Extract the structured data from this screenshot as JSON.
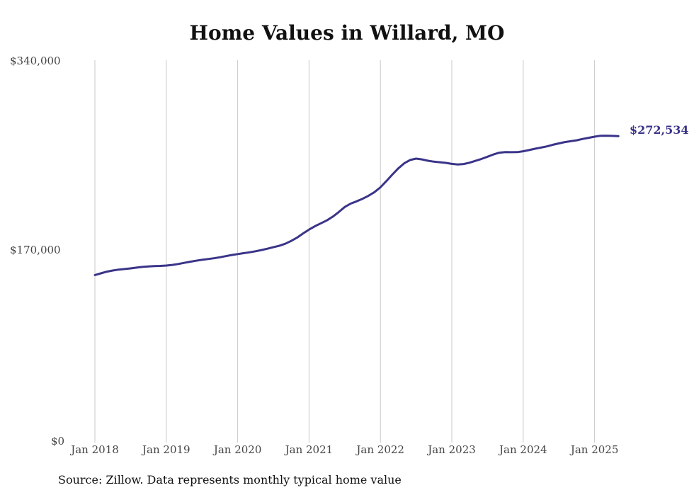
{
  "chart_data": {
    "type": "line",
    "title": "Home Values in Willard, MO",
    "xlabel": "",
    "ylabel": "",
    "x_ticks": [
      "Jan 2018",
      "Jan 2019",
      "Jan 2020",
      "Jan 2021",
      "Jan 2022",
      "Jan 2023",
      "Jan 2024",
      "Jan 2025"
    ],
    "y_ticks": [
      "$340,000",
      "$170,000",
      "$0"
    ],
    "ylim": [
      0,
      340000
    ],
    "grid": "vertical",
    "line_color": "#3a3489",
    "end_label": "$272,534",
    "source": "Source: Zillow. Data represents monthly typical home value",
    "series": [
      {
        "x": [
          "2018-01",
          "2018-02",
          "2018-03",
          "2018-04",
          "2018-05",
          "2018-06",
          "2018-07",
          "2018-08",
          "2018-09",
          "2018-10",
          "2018-11",
          "2018-12",
          "2019-01",
          "2019-02",
          "2019-03",
          "2019-04",
          "2019-05",
          "2019-06",
          "2019-07",
          "2019-08",
          "2019-09",
          "2019-10",
          "2019-11",
          "2019-12",
          "2020-01",
          "2020-02",
          "2020-03",
          "2020-04",
          "2020-05",
          "2020-06",
          "2020-07",
          "2020-08",
          "2020-09",
          "2020-10",
          "2020-11",
          "2020-12",
          "2021-01",
          "2021-02",
          "2021-03",
          "2021-04",
          "2021-05",
          "2021-06",
          "2021-07",
          "2021-08",
          "2021-09",
          "2021-10",
          "2021-11",
          "2021-12",
          "2022-01",
          "2022-02",
          "2022-03",
          "2022-04",
          "2022-05",
          "2022-06",
          "2022-07",
          "2022-08",
          "2022-09",
          "2022-10",
          "2022-11",
          "2022-12",
          "2023-01",
          "2023-02",
          "2023-03",
          "2023-04",
          "2023-05",
          "2023-06",
          "2023-07",
          "2023-08",
          "2023-09",
          "2023-10",
          "2023-11",
          "2023-12",
          "2024-01",
          "2024-02",
          "2024-03",
          "2024-04",
          "2024-05",
          "2024-06",
          "2024-07",
          "2024-08",
          "2024-09",
          "2024-10",
          "2024-11",
          "2024-12",
          "2025-01",
          "2025-02",
          "2025-03",
          "2025-04",
          "2025-05"
        ],
        "values": [
          149000,
          150500,
          152000,
          153000,
          153800,
          154300,
          154900,
          155600,
          156200,
          156600,
          156900,
          157100,
          157400,
          158000,
          158800,
          159800,
          160800,
          161700,
          162500,
          163200,
          163900,
          164800,
          165800,
          166800,
          167600,
          168400,
          169200,
          170100,
          171200,
          172400,
          173700,
          175000,
          176800,
          179300,
          182300,
          186000,
          189400,
          192400,
          195000,
          197600,
          200900,
          205000,
          209500,
          212500,
          214500,
          216800,
          219500,
          222700,
          227000,
          232500,
          238300,
          243800,
          248300,
          251300,
          252500,
          251800,
          250600,
          249800,
          249300,
          248700,
          247800,
          247300,
          247700,
          248900,
          250500,
          252200,
          254200,
          256200,
          257800,
          258300,
          258200,
          258300,
          259000,
          260100,
          261300,
          262300,
          263400,
          264800,
          266000,
          267200,
          268000,
          268800,
          270000,
          271000,
          272000,
          272800,
          272900,
          272700,
          272534
        ]
      }
    ]
  }
}
